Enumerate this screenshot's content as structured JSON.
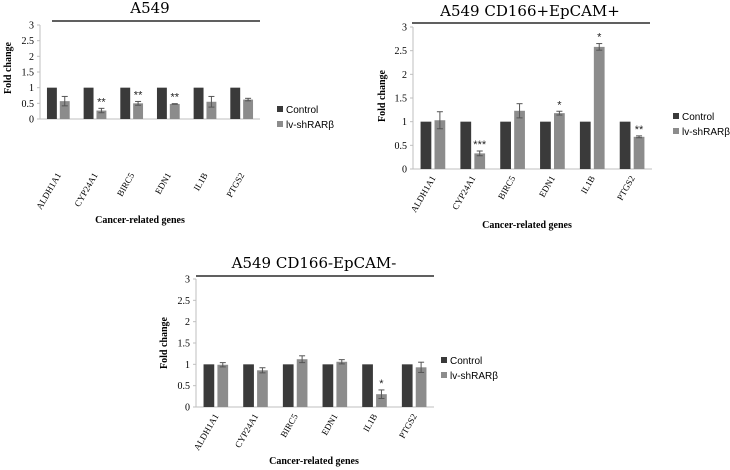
{
  "chart_data": [
    {
      "type": "bar",
      "title": "A549",
      "xlabel": "Cancer-related genes",
      "ylabel": "Fold change",
      "ylim": [
        0,
        3
      ],
      "yticks": [
        "0",
        "0.5",
        "1",
        "1.5",
        "2",
        "2.5",
        "3"
      ],
      "categories": [
        "ALDH1A1",
        "CYP24A1",
        "BIRC5",
        "EDN1",
        "IL1B",
        "PTGS2"
      ],
      "legend_position": "right",
      "series": [
        {
          "name": "Control",
          "color": "#3a3a3a",
          "values": [
            1,
            1,
            1,
            1,
            1,
            1
          ],
          "errors": [
            0,
            0,
            0,
            0,
            0,
            0
          ]
        },
        {
          "name": "lv-shRARβ",
          "color": "#8c8c8c",
          "values": [
            0.57,
            0.27,
            0.5,
            0.48,
            0.55,
            0.62
          ],
          "errors": [
            0.15,
            0.07,
            0.06,
            0.01,
            0.17,
            0.04
          ]
        }
      ],
      "annotations": [
        "",
        "**",
        "**",
        "**",
        "",
        ""
      ]
    },
    {
      "type": "bar",
      "title": "A549 CD166+EpCAM+",
      "xlabel": "Cancer-related genes",
      "ylabel": "Fold change",
      "ylim": [
        0,
        3
      ],
      "yticks": [
        "0",
        "0.5",
        "1",
        "1.5",
        "2",
        "2.5",
        "3"
      ],
      "categories": [
        "ALDH1A1",
        "CYP24A1",
        "BIRC5",
        "EDN1",
        "IL1B",
        "PTGS2"
      ],
      "legend_position": "right",
      "series": [
        {
          "name": "Control",
          "color": "#3a3a3a",
          "values": [
            1,
            1,
            1,
            1,
            1,
            1
          ],
          "errors": [
            0,
            0,
            0,
            0,
            0,
            0
          ]
        },
        {
          "name": "lv-shRARβ",
          "color": "#8c8c8c",
          "values": [
            1.03,
            0.33,
            1.23,
            1.18,
            2.58,
            0.68
          ],
          "errors": [
            0.18,
            0.05,
            0.15,
            0.04,
            0.07,
            0.02
          ]
        }
      ],
      "annotations": [
        "",
        "***",
        "",
        "*",
        "*",
        "**"
      ]
    },
    {
      "type": "bar",
      "title": "A549 CD166-EpCAM-",
      "xlabel": "Cancer-related genes",
      "ylabel": "Fold change",
      "ylim": [
        0,
        3
      ],
      "yticks": [
        "0",
        "0.5",
        "1",
        "1.5",
        "2",
        "2.5",
        "3"
      ],
      "categories": [
        "ALDH1A1",
        "CYP24A1",
        "BIRC5",
        "EDN1",
        "IL1B",
        "PTGS2"
      ],
      "legend_position": "right",
      "series": [
        {
          "name": "Control",
          "color": "#3a3a3a",
          "values": [
            1,
            1,
            1,
            1,
            1,
            1
          ],
          "errors": [
            0,
            0,
            0,
            0,
            0,
            0
          ]
        },
        {
          "name": "lv-shRARβ",
          "color": "#8c8c8c",
          "values": [
            0.99,
            0.86,
            1.12,
            1.06,
            0.3,
            0.93
          ],
          "errors": [
            0.05,
            0.06,
            0.08,
            0.05,
            0.1,
            0.12
          ]
        }
      ],
      "annotations": [
        "",
        "",
        "",
        "",
        "*",
        ""
      ]
    }
  ]
}
